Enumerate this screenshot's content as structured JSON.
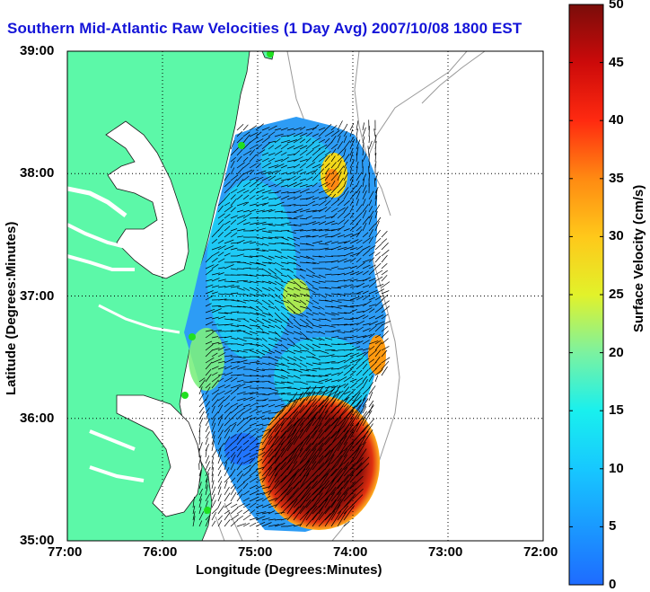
{
  "title": "Southern Mid-Atlantic Raw Velocities (1 Day Avg) 2007/10/08 1800 EST",
  "x_axis": {
    "label": "Longitude (Degrees:Minutes)",
    "ticks": [
      "77:00",
      "76:00",
      "75:00",
      "74:00",
      "73:00",
      "72:00"
    ]
  },
  "y_axis": {
    "label": "Latitude (Degrees:Minutes)",
    "ticks": [
      "39:00",
      "38:00",
      "37:00",
      "36:00",
      "35:00"
    ]
  },
  "colorbar": {
    "label": "Surface Velocity (cm/s)",
    "ticks": [
      "50",
      "45",
      "40",
      "35",
      "30",
      "25",
      "20",
      "15",
      "10",
      "5",
      "0"
    ],
    "range": [
      0,
      50
    ]
  },
  "colors": {
    "land": "#5cf8a8",
    "water": "#ffffff",
    "title": "#1414d8",
    "station": "#20e020"
  }
}
